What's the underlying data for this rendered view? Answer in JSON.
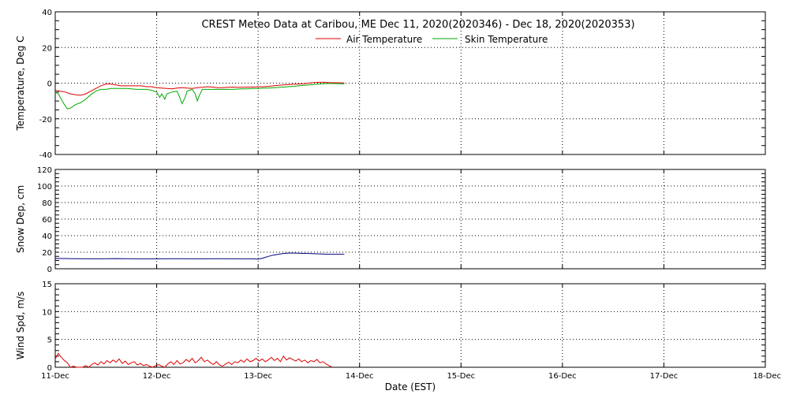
{
  "title": "CREST Meteo Data at Caribou, ME   Dec 11, 2020(2020346) - Dec 18, 2020(2020353)",
  "xlabel": "Date (EST)",
  "colors": {
    "air": "#dd0000",
    "skin": "#00aa00",
    "snow": "#000080",
    "wind": "#dd0000",
    "grid": "#000000"
  },
  "chart_data": [
    {
      "type": "line",
      "ylabel": "Temperature, Deg C",
      "ylim": [
        -40,
        40
      ],
      "yticks": [
        -40,
        -20,
        0,
        20,
        40
      ],
      "xlim": [
        11,
        18
      ],
      "grid": true,
      "legend_position": "top-center",
      "series": [
        {
          "name": "Air Temperature",
          "x": [
            11.0,
            11.05,
            11.1,
            11.15,
            11.2,
            11.25,
            11.3,
            11.35,
            11.4,
            11.45,
            11.5,
            11.55,
            11.6,
            11.65,
            11.7,
            11.75,
            11.8,
            11.85,
            11.9,
            11.95,
            12.0,
            12.05,
            12.1,
            12.15,
            12.2,
            12.25,
            12.3,
            12.35,
            12.4,
            12.45,
            12.5,
            12.55,
            12.6,
            12.65,
            12.7,
            12.75,
            12.8,
            12.85,
            12.9,
            12.95,
            13.0,
            13.05,
            13.1,
            13.15,
            13.2,
            13.25,
            13.3,
            13.35,
            13.4,
            13.45,
            13.5,
            13.55,
            13.6,
            13.65,
            13.7,
            13.75,
            13.8,
            13.85
          ],
          "values": [
            -4,
            -4.5,
            -5,
            -6,
            -6.5,
            -6.8,
            -6,
            -4.5,
            -3,
            -1.5,
            -0.5,
            -0.5,
            -1,
            -1.5,
            -1.5,
            -1.5,
            -1.5,
            -1.5,
            -2,
            -2,
            -2.5,
            -2.8,
            -3,
            -3.2,
            -2.8,
            -2.5,
            -2.8,
            -3,
            -2.5,
            -2.3,
            -2,
            -2.2,
            -2.5,
            -2.5,
            -2.3,
            -2.2,
            -2.3,
            -2.3,
            -2.2,
            -2.2,
            -2,
            -2,
            -1.8,
            -1.5,
            -1.2,
            -1,
            -0.8,
            -0.6,
            -0.5,
            -0.3,
            0,
            0.3,
            0.5,
            0.5,
            0.3,
            0.2,
            0.2,
            0.1
          ]
        },
        {
          "name": "Skin Temperature",
          "x": [
            11.0,
            11.03,
            11.06,
            11.09,
            11.12,
            11.15,
            11.2,
            11.25,
            11.3,
            11.35,
            11.4,
            11.45,
            11.5,
            11.55,
            11.6,
            11.65,
            11.7,
            11.75,
            11.8,
            11.85,
            11.9,
            11.95,
            12.0,
            12.03,
            12.05,
            12.08,
            12.1,
            12.15,
            12.2,
            12.22,
            12.25,
            12.28,
            12.3,
            12.35,
            12.38,
            12.4,
            12.42,
            12.45,
            12.5,
            12.55,
            12.6,
            12.65,
            12.7,
            12.75,
            12.8,
            12.85,
            12.9,
            12.95,
            13.0,
            13.05,
            13.1,
            13.15,
            13.2,
            13.25,
            13.3,
            13.35,
            13.4,
            13.45,
            13.5,
            13.55,
            13.6,
            13.65,
            13.7,
            13.75,
            13.8,
            13.85
          ],
          "values": [
            -5,
            -6,
            -9,
            -12,
            -14.5,
            -14,
            -12,
            -11,
            -9,
            -6.5,
            -4.5,
            -3.5,
            -3.5,
            -3,
            -3,
            -3,
            -3,
            -3.2,
            -3.5,
            -3.5,
            -3.5,
            -4,
            -5,
            -8,
            -6,
            -9,
            -6,
            -5,
            -4.5,
            -7,
            -11.5,
            -8,
            -4.5,
            -3.5,
            -6,
            -10,
            -7,
            -3.5,
            -3.5,
            -3.5,
            -3.5,
            -3.5,
            -3.5,
            -3.5,
            -3.3,
            -3.2,
            -3.2,
            -3,
            -3,
            -2.8,
            -2.8,
            -2.6,
            -2.4,
            -2.2,
            -2,
            -1.8,
            -1.5,
            -1.2,
            -1,
            -0.8,
            -0.5,
            -0.3,
            -0.2,
            -0.2,
            -0.3,
            -0.4
          ]
        }
      ]
    },
    {
      "type": "line",
      "ylabel": "Snow Dep, cm",
      "ylim": [
        0,
        120
      ],
      "yticks": [
        0,
        20,
        40,
        60,
        80,
        100,
        120
      ],
      "xlim": [
        11,
        18
      ],
      "grid": true,
      "series": [
        {
          "x": [
            11.0,
            11.2,
            11.4,
            11.6,
            11.8,
            12.0,
            12.2,
            12.4,
            12.6,
            12.8,
            12.95,
            13.0,
            13.05,
            13.1,
            13.15,
            13.2,
            13.25,
            13.3,
            13.35,
            13.4,
            13.5,
            13.6,
            13.7,
            13.8,
            13.85
          ],
          "values": [
            12.5,
            12.2,
            12,
            12.3,
            12,
            12,
            12.2,
            12,
            12.1,
            12,
            12,
            11.5,
            13,
            15,
            16.5,
            17.5,
            18.5,
            19,
            19,
            18.8,
            18.5,
            18,
            17.5,
            17.5,
            17.5
          ]
        }
      ]
    },
    {
      "type": "line",
      "ylabel": "Wind Spd, m/s",
      "ylim": [
        0,
        15
      ],
      "yticks": [
        0,
        5,
        10,
        15
      ],
      "xlim": [
        11,
        18
      ],
      "xticks": [
        "11-Dec",
        "12-Dec",
        "13-Dec",
        "14-Dec",
        "15-Dec",
        "16-Dec",
        "17-Dec",
        "18-Dec"
      ],
      "grid": true,
      "series": [
        {
          "x": [
            11.0,
            11.03,
            11.06,
            11.09,
            11.12,
            11.15,
            11.18,
            11.21,
            11.24,
            11.27,
            11.3,
            11.33,
            11.36,
            11.39,
            11.42,
            11.45,
            11.48,
            11.51,
            11.54,
            11.57,
            11.6,
            11.63,
            11.66,
            11.69,
            11.72,
            11.75,
            11.78,
            11.81,
            11.84,
            11.87,
            11.9,
            11.93,
            11.96,
            11.99,
            12.02,
            12.05,
            12.08,
            12.11,
            12.14,
            12.17,
            12.2,
            12.23,
            12.26,
            12.29,
            12.32,
            12.35,
            12.38,
            12.41,
            12.44,
            12.47,
            12.5,
            12.53,
            12.56,
            12.59,
            12.62,
            12.65,
            12.68,
            12.71,
            12.74,
            12.77,
            12.8,
            12.83,
            12.86,
            12.89,
            12.92,
            12.95,
            12.98,
            13.01,
            13.04,
            13.07,
            13.1,
            13.13,
            13.16,
            13.19,
            13.22,
            13.25,
            13.28,
            13.31,
            13.34,
            13.37,
            13.4,
            13.43,
            13.46,
            13.49,
            13.52,
            13.55,
            13.58,
            13.61,
            13.64,
            13.67,
            13.7,
            13.73
          ],
          "values": [
            1.5,
            2.5,
            1.8,
            1.2,
            0.8,
            0,
            0.2,
            0,
            0,
            0,
            0.3,
            0,
            0.5,
            0.8,
            0.4,
            1,
            0.6,
            1.2,
            0.8,
            1.3,
            0.9,
            1.5,
            0.7,
            1.1,
            0.5,
            0.8,
            1,
            0.4,
            0.7,
            0.3,
            0.5,
            0.2,
            0,
            0.3,
            0.5,
            0.2,
            0,
            0.6,
            1,
            0.5,
            1.2,
            0.6,
            0.8,
            1.4,
            1,
            1.6,
            0.8,
            1.2,
            1.8,
            1,
            1.3,
            0.8,
            0.5,
            1,
            0.4,
            0.2,
            0.6,
            0.9,
            0.5,
            1,
            0.8,
            1.3,
            0.9,
            1.5,
            1,
            1.2,
            1.6,
            1.1,
            1.5,
            1,
            1.3,
            1.8,
            1.2,
            1.6,
            1,
            2,
            1.3,
            1.7,
            1.4,
            1.1,
            1.5,
            1,
            1.3,
            0.8,
            1.2,
            1,
            1.4,
            0.8,
            1,
            0.6,
            0.3,
            0
          ]
        }
      ]
    }
  ]
}
